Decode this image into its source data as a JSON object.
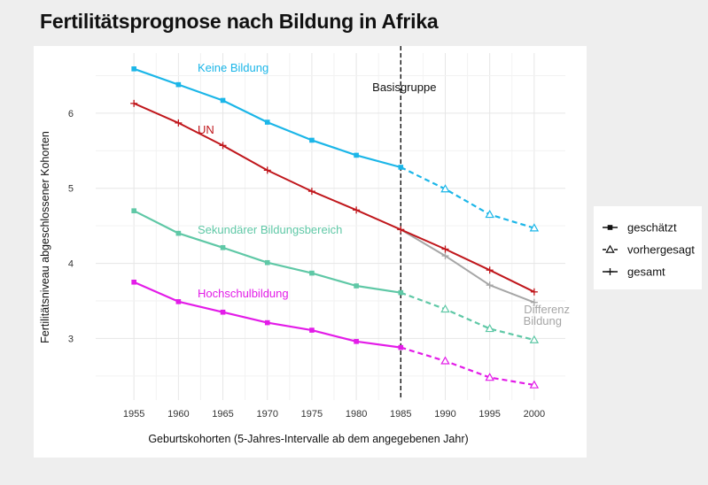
{
  "title": "Fertilitätsprognose nach Bildung in Afrika",
  "colors": {
    "keine": "#1bb6e8",
    "un": "#c0171c",
    "sekundaer": "#5fc8a6",
    "hochschul": "#e31ce8",
    "differenz": "#a6a6a6",
    "grid": "#e6e6e6",
    "text": "#222222"
  },
  "chart_data": {
    "type": "line",
    "title": "Fertilitätsprognose nach Bildung in Afrika",
    "xlabel": "Geburtskohorten (5-Jahres-Intervalle ab dem angegebenen Jahr)",
    "ylabel": "Fertilitätsniveau abgeschlossener Kohorten",
    "x": [
      1955,
      1960,
      1965,
      1970,
      1975,
      1980,
      1985,
      1990,
      1995,
      2000
    ],
    "xlim": [
      1950.7,
      2003.5
    ],
    "ylim": [
      2.18,
      6.8
    ],
    "yticks": [
      3,
      4,
      5,
      6
    ],
    "xticks": [
      1955,
      1960,
      1965,
      1970,
      1975,
      1980,
      1985,
      1990,
      1995,
      2000
    ],
    "grid": true,
    "vline": {
      "x": 1985,
      "label": "Basisgruppe"
    },
    "series": [
      {
        "name": "Keine Bildung",
        "color_key": "keine",
        "estimated": {
          "x": [
            1955,
            1960,
            1965,
            1970,
            1975,
            1980,
            1985
          ],
          "y": [
            6.59,
            6.38,
            6.17,
            5.88,
            5.64,
            5.44,
            5.28
          ]
        },
        "projected": {
          "x": [
            1985,
            1990,
            1995,
            2000
          ],
          "y": [
            5.28,
            4.99,
            4.65,
            4.47
          ]
        }
      },
      {
        "name": "UN",
        "color_key": "un",
        "total": {
          "x": [
            1955,
            1960,
            1965,
            1970,
            1975,
            1980,
            1985,
            1990,
            1995,
            2000
          ],
          "y": [
            6.13,
            5.87,
            5.57,
            5.24,
            4.96,
            4.71,
            4.45,
            4.19,
            3.91,
            3.62
          ]
        }
      },
      {
        "name": "Sekundärer Bildungsbereich",
        "color_key": "sekundaer",
        "estimated": {
          "x": [
            1955,
            1960,
            1965,
            1970,
            1975,
            1980,
            1985
          ],
          "y": [
            4.7,
            4.4,
            4.21,
            4.01,
            3.87,
            3.7,
            3.61
          ]
        },
        "projected": {
          "x": [
            1985,
            1990,
            1995,
            2000
          ],
          "y": [
            3.61,
            3.39,
            3.13,
            2.98
          ]
        }
      },
      {
        "name": "Hochschulbildung",
        "color_key": "hochschul",
        "estimated": {
          "x": [
            1955,
            1960,
            1965,
            1970,
            1975,
            1980,
            1985
          ],
          "y": [
            3.75,
            3.49,
            3.35,
            3.21,
            3.11,
            2.96,
            2.88
          ]
        },
        "projected": {
          "x": [
            1985,
            1990,
            1995,
            2000
          ],
          "y": [
            2.88,
            2.7,
            2.48,
            2.38
          ]
        }
      },
      {
        "name": "Differenz Bildung",
        "color_key": "differenz",
        "total": {
          "x": [
            1985,
            1990,
            1995,
            2000
          ],
          "y": [
            4.45,
            4.1,
            3.71,
            3.48
          ]
        }
      }
    ],
    "labels": [
      {
        "text": "Keine Bildung",
        "color_key": "keine"
      },
      {
        "text": "UN",
        "color_key": "un"
      },
      {
        "text": "Sekundärer Bildungsbereich",
        "color_key": "sekundaer"
      },
      {
        "text": "Hochschulbildung",
        "color_key": "hochschul"
      },
      {
        "text": "Differenz",
        "color_key": "differenz"
      },
      {
        "text": "Bildung",
        "color_key": "differenz"
      }
    ],
    "legend": {
      "placement": "right",
      "items": [
        {
          "label": "geschätzt",
          "marker": "square",
          "line": "solid"
        },
        {
          "label": "vorhergesagt",
          "marker": "triangle-open",
          "line": "dashed"
        },
        {
          "label": "gesamt",
          "marker": "plus",
          "line": "solid"
        }
      ]
    }
  }
}
